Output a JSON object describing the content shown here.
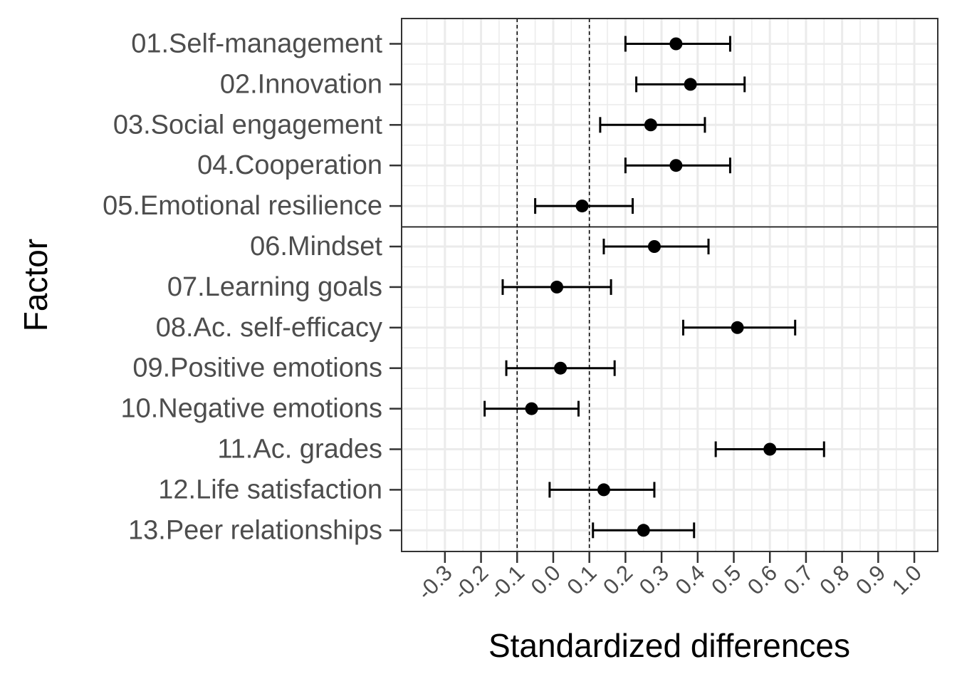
{
  "chart_data": {
    "type": "forest",
    "xlabel": "Standardized differences",
    "ylabel": "Factor",
    "categories": [
      "01.Self-management",
      "02.Innovation",
      "03.Social engagement",
      "04.Cooperation",
      "05.Emotional resilience",
      "06.Mindset",
      "07.Learning goals",
      "08.Ac. self-efficacy",
      "09.Positive emotions",
      "10.Negative emotions",
      "11.Ac. grades",
      "12.Life satisfaction",
      "13.Peer relationships"
    ],
    "series": [
      {
        "estimate": [
          0.34,
          0.38,
          0.27,
          0.34,
          0.08,
          0.28,
          0.01,
          0.51,
          0.02,
          -0.06,
          0.6,
          0.14,
          0.25
        ],
        "lower": [
          0.2,
          0.23,
          0.13,
          0.2,
          -0.05,
          0.14,
          -0.14,
          0.36,
          -0.13,
          -0.19,
          0.45,
          -0.01,
          0.11
        ],
        "upper": [
          0.49,
          0.53,
          0.42,
          0.49,
          0.22,
          0.43,
          0.16,
          0.67,
          0.17,
          0.07,
          0.75,
          0.28,
          0.39
        ]
      }
    ],
    "xticks": [
      "-0.3",
      "-0.2",
      "-0.1",
      "0.0",
      "0.1",
      "0.2",
      "0.3",
      "0.4",
      "0.5",
      "0.6",
      "0.7",
      "0.8",
      "0.9",
      "1.0"
    ],
    "xlim": [
      -0.42,
      1.065
    ],
    "reference_lines": [
      -0.1,
      0.1
    ],
    "group_separator_after": "05.Emotional resilience",
    "grid": true,
    "colors": {
      "point": "#000000",
      "grid": "#ebebeb",
      "panel_border": "#333333",
      "tick_text": "#4d4d4d"
    }
  }
}
